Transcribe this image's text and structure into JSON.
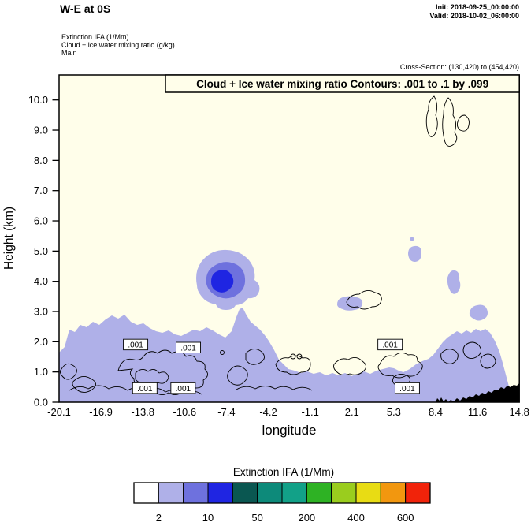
{
  "header": {
    "title": "W-E at 0S",
    "init": "Init: 2018-09-25_00:00:00",
    "valid": "Valid: 2018-10-02_06:00:00",
    "field_lines": [
      "Extinction IFA  (1/Mm)",
      "Cloud + ice water mixing ratio   (g/kg)",
      "Main"
    ],
    "cross_section": "Cross-Section: (130,420) to (454,420)"
  },
  "chart_data": {
    "type": "heatmap",
    "subtype": "filled-contour vertical cross-section (W-E at 0S) with line contours, labeled contour boxes and black terrain silhouette",
    "title": "Cloud + Ice water mixing ratio Contours: .001 to .1 by .099",
    "xlabel": "longitude",
    "ylabel": "Height (km)",
    "x_ticks": [
      "-20.1",
      "-16.9",
      "-13.8",
      "-10.6",
      "-7.4",
      "-4.2",
      "-1.1",
      "2.1",
      "5.3",
      "8.4",
      "11.6",
      "14.8"
    ],
    "y_ticks": [
      "0.0",
      "1.0",
      "2.0",
      "3.0",
      "4.0",
      "5.0",
      "6.0",
      "7.0",
      "8.0",
      "9.0",
      "10.0"
    ],
    "xlim": [
      -20.1,
      14.8
    ],
    "ylim": [
      0,
      10.8
    ],
    "grid": false,
    "contour_field": {
      "name": "Cloud + ice water mixing ratio (g/kg)",
      "contour_levels": [
        0.001,
        0.1
      ],
      "contour_interval": 0.099,
      "label": ".001",
      "labeled_points_lon_km": [
        [
          -14.3,
          1.9
        ],
        [
          -10.3,
          1.8
        ],
        [
          -13.6,
          0.46
        ],
        [
          -10.7,
          0.46
        ],
        [
          5.0,
          1.9
        ],
        [
          6.3,
          0.46
        ]
      ]
    },
    "shaded_field": {
      "name": "Extinction IFA (1/Mm)",
      "levels": [
        2,
        5,
        10,
        20,
        50,
        100,
        200,
        300,
        400,
        500,
        600
      ],
      "colors": [
        "#FFFFFF",
        "#AFB0E8",
        "#6E71DE",
        "#1F25E2",
        "#0A5751",
        "#0D8A7A",
        "#12A188",
        "#2EB224",
        "#9ACD1E",
        "#E8DC14",
        "#F2970F",
        "#F1230A"
      ],
      "labeled_levels": [
        "2",
        "10",
        "50",
        "200",
        "400",
        "600"
      ]
    },
    "shaded_regions": [
      {
        "level_range": "2-10 /Mm",
        "description": "boundary-layer aerosol/cloud band along the whole section",
        "lon_range": [
          -20.1,
          13.5
        ],
        "height_range_km": [
          0,
          2.9
        ]
      },
      {
        "level_range": "up to 200 /Mm",
        "description": "mid-level cloud blob with bright blue core",
        "center_lon": -7.5,
        "center_height_km": 4.1,
        "lon_range": [
          -9.3,
          -4.8
        ],
        "height_range_km": [
          3.0,
          5.0
        ]
      },
      {
        "level_range": "2-10 /Mm",
        "description": "small patch",
        "lon_range": [
          0.9,
          3.2
        ],
        "height_range_km": [
          3.2,
          3.7
        ]
      },
      {
        "level_range": "2-10 /Mm",
        "description": "small patch",
        "lon_range": [
          6.3,
          7.2
        ],
        "height_range_km": [
          4.7,
          5.2
        ]
      },
      {
        "level_range": "2-10 /Mm",
        "description": "narrow patch",
        "lon_range": [
          9.3,
          10.2
        ],
        "height_range_km": [
          3.7,
          4.4
        ]
      },
      {
        "level_range": "2-10 /Mm",
        "description": "small patch",
        "lon_range": [
          11.0,
          12.2
        ],
        "height_range_km": [
          2.8,
          3.3
        ]
      }
    ],
    "line_contour_features": [
      {
        "description": "wiggly .001 g/kg cloud outlines inside boundary layer",
        "lon_range": [
          -20,
          8
        ],
        "height_range_km": [
          0,
          2.2
        ]
      },
      {
        "description": "narrow high-cloud outlines below title box",
        "lon_range": [
          8.2,
          10.5
        ],
        "height_range_km": [
          9.3,
          10.5
        ]
      }
    ],
    "terrain": {
      "description": "black filled orography rising toward right edge",
      "lon_range": [
        9.3,
        14.8
      ],
      "max_height_km": 0.65
    }
  },
  "colorbar": {
    "title": "Extinction IFA  (1/Mm)"
  },
  "colors": {
    "plot_bg": "#FFFEEA",
    "shade_light": "#AFB0E8",
    "shade_mid": "#6E71DE",
    "shade_core": "#1F25E2",
    "terrain": "#000000",
    "contour_line": "#000000"
  }
}
